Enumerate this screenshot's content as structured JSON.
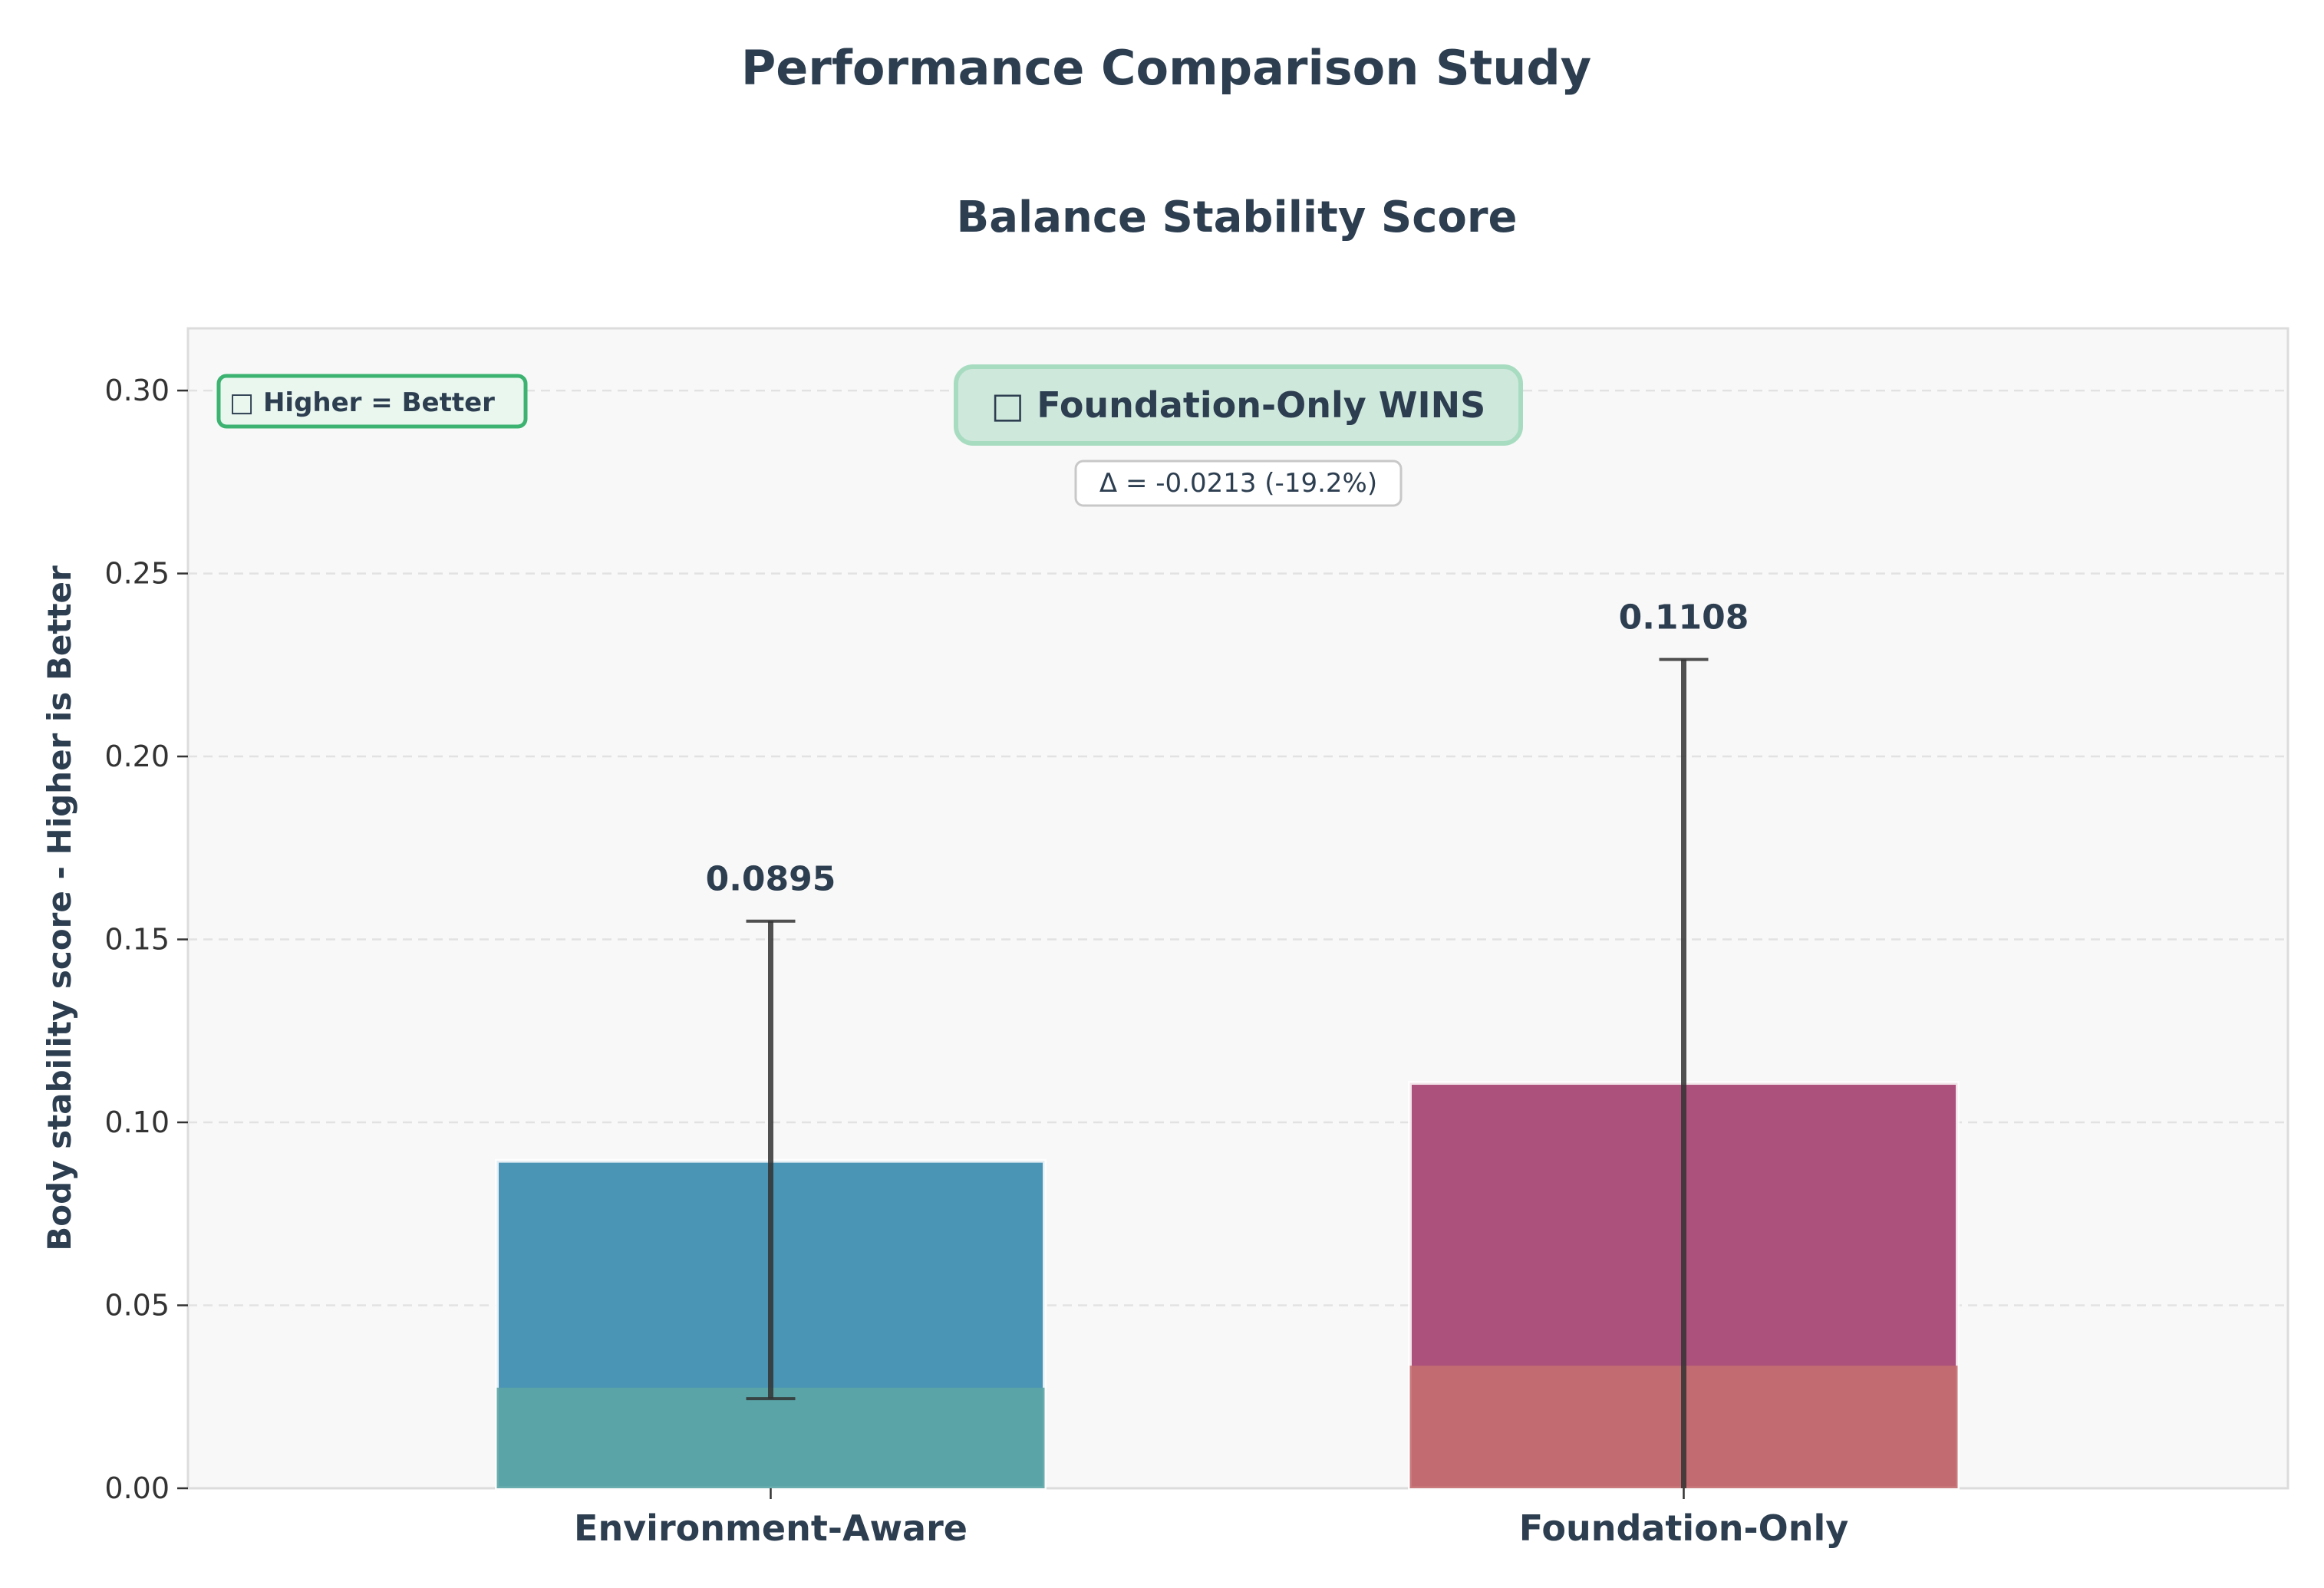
{
  "figure": {
    "suptitle": "Performance Comparison Study"
  },
  "chart_data": {
    "type": "bar",
    "title": "Balance Stability Score",
    "xlabel": "",
    "ylabel": "Body stability score - Higher is Better",
    "ylim": [
      0,
      0.317
    ],
    "yticks": [
      "0.00",
      "0.05",
      "0.10",
      "0.15",
      "0.20",
      "0.25",
      "0.30"
    ],
    "ytick_values": [
      0.0,
      0.05,
      0.1,
      0.15,
      0.2,
      0.25,
      0.3
    ],
    "grid": "y-dashed",
    "categories": [
      "Environment-Aware",
      "Foundation-Only"
    ],
    "values": [
      0.0895,
      0.1108
    ],
    "value_labels": [
      "0.0895",
      "0.1108"
    ],
    "error_bars": [
      {
        "low": 0.0245,
        "high": 0.155
      },
      {
        "low": 0.0,
        "high": 0.2265
      }
    ],
    "base_band": [
      0.0275,
      0.0335
    ],
    "colors": {
      "bars": [
        "#4a94b5",
        "#ab517c"
      ],
      "base_band": [
        "#5ca5a6",
        "#c46e70"
      ],
      "error": "#333333",
      "plot_bg": "#f8f8f8",
      "text": "#2c3e50",
      "winner_bg": "#cfe8dc",
      "winner_border": "#a8dcc0",
      "hint_border": "#3cb371",
      "hint_bg": "#eaf7ef"
    },
    "annotations": {
      "hint": "□ Higher = Better",
      "winner": "□ Foundation-Only WINS",
      "delta": "Δ = -0.0213 (-19.2%)"
    }
  }
}
